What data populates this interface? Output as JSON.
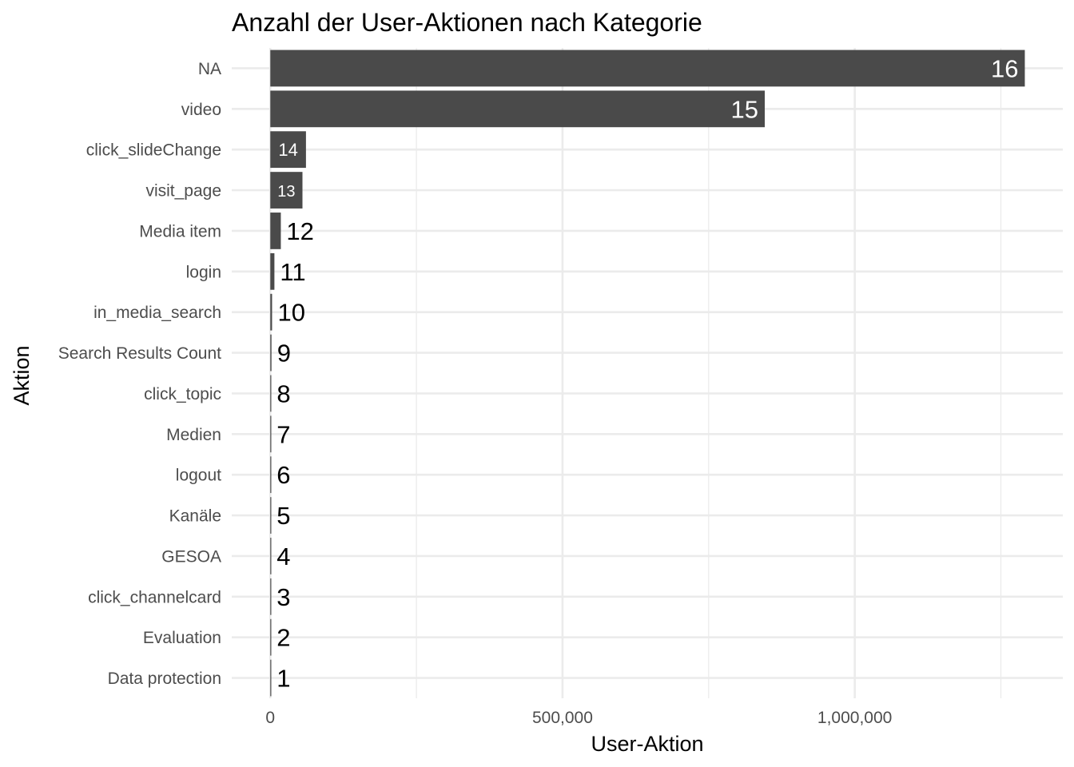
{
  "chart_data": {
    "type": "bar",
    "orientation": "horizontal",
    "title": "Anzahl der User-Aktionen nach Kategorie",
    "xlabel": "User-Aktion",
    "ylabel": "Aktion",
    "categories": [
      "NA",
      "video",
      "click_slideChange",
      "visit_page",
      "Media item",
      "login",
      "in_media_search",
      "Search Results Count",
      "click_topic",
      "Medien",
      "logout",
      "Kanäle",
      "GESOA",
      "click_channelcard",
      "Evaluation",
      "Data protection"
    ],
    "values": [
      1291000,
      846000,
      61000,
      55000,
      18000,
      7000,
      3000,
      2000,
      1500,
      1000,
      800,
      600,
      400,
      300,
      200,
      100
    ],
    "bar_labels": [
      "16",
      "15",
      "14",
      "13",
      "12",
      "11",
      "10",
      "9",
      "8",
      "7",
      "6",
      "5",
      "4",
      "3",
      "2",
      "1"
    ],
    "x_ticks": [
      {
        "value": 0,
        "label": "0"
      },
      {
        "value": 500000,
        "label": "500,000"
      },
      {
        "value": 1000000,
        "label": "1,000,000"
      }
    ],
    "xlim": [
      -66000,
      1356000
    ],
    "grid": true,
    "colors": {
      "bar": "#4a4a4a",
      "grid": "#ebebeb",
      "tick_text": "#4d4d4d",
      "label_inside": "#ffffff",
      "label_outside": "#000000"
    }
  }
}
